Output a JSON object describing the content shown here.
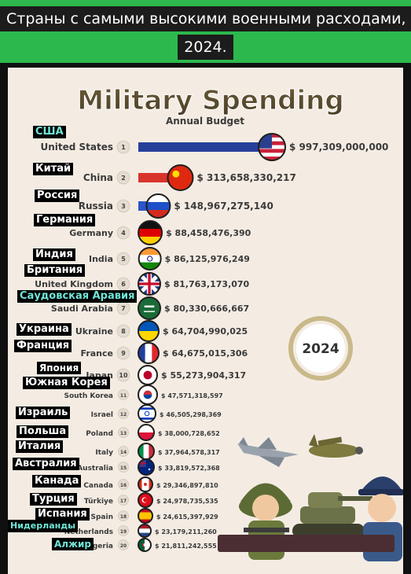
{
  "caption": "Страны с самыми высокими военными расходами, 2024.",
  "chart_data": {
    "type": "bar",
    "title": "Military Spending",
    "subtitle": "Annual Budget",
    "badge": "2024",
    "currency": "$",
    "colors": {
      "title": "#574a2d",
      "text": "#3a3a3a",
      "rank_circle": "#e4ddd1",
      "badge_ring": "#c9b98a",
      "ru_label_cyan": "#6fe6d8",
      "header": "#2db84d"
    },
    "countries": [
      {
        "rank": 1,
        "name": "United States",
        "ru": "США",
        "value": 997309000000,
        "label": "$ 997,309,000,000",
        "bar_color": "#26409a",
        "flag": "us-flag-icon",
        "ru_color": "cyan"
      },
      {
        "rank": 2,
        "name": "China",
        "ru": "Китай",
        "value": 313658330217,
        "label": "$ 313,658,330,217",
        "bar_color": "#d9342b",
        "flag": "cn-flag-icon",
        "ru_color": "white"
      },
      {
        "rank": 3,
        "name": "Russia",
        "ru": "Россия",
        "value": 148967275140,
        "label": "$ 148,967,275,140",
        "bar_color": "#2b55c8",
        "flag": "ru-flag-icon",
        "ru_color": "white"
      },
      {
        "rank": 4,
        "name": "Germany",
        "ru": "Германия",
        "value": 88458476390,
        "label": "$ 88,458,476,390",
        "bar_color": "#111111",
        "flag": "de-flag-icon",
        "ru_color": "white"
      },
      {
        "rank": 5,
        "name": "India",
        "ru": "Индия",
        "value": 86125976249,
        "label": "$ 86,125,976,249",
        "bar_color": "#e58a2c",
        "flag": "in-flag-icon",
        "ru_color": "white"
      },
      {
        "rank": 6,
        "name": "United Kingdom",
        "ru": "Британия",
        "value": 81763173070,
        "label": "$ 81,763,173,070",
        "bar_color": "#1f3a8a",
        "flag": "gb-flag-icon",
        "ru_color": "white"
      },
      {
        "rank": 7,
        "name": "Saudi Arabia",
        "ru": "Саудовская Аравия",
        "value": 80330666667,
        "label": "$ 80,330,666,667",
        "bar_color": "#1d7a3a",
        "flag": "sa-flag-icon",
        "ru_color": "cyan"
      },
      {
        "rank": 8,
        "name": "Ukraine",
        "ru": "Украина",
        "value": 64704990025,
        "label": "$ 64,704,990,025",
        "bar_color": "#2d5fbf",
        "flag": "ua-flag-icon",
        "ru_color": "white"
      },
      {
        "rank": 9,
        "name": "France",
        "ru": "Франция",
        "value": 64675015306,
        "label": "$ 64,675,015,306",
        "bar_color": "#1f3f9a",
        "flag": "fr-flag-icon",
        "ru_color": "white"
      },
      {
        "rank": 10,
        "name": "Japan",
        "ru": "Япония",
        "value": 55273904317,
        "label": "$ 55,273,904,317",
        "bar_color": "#c0182d",
        "flag": "jp-flag-icon",
        "ru_color": "white"
      },
      {
        "rank": 11,
        "name": "South Korea",
        "ru": "Южная Корея",
        "value": 47571318597,
        "label": "$ 47,571,318,597",
        "bar_color": "#1c4aa0",
        "flag": "kr-flag-icon",
        "ru_color": "white"
      },
      {
        "rank": 12,
        "name": "Israel",
        "ru": "Израиль",
        "value": 46505298369,
        "label": "$ 46,505,298,369",
        "bar_color": "#2a58b8",
        "flag": "il-flag-icon",
        "ru_color": "white"
      },
      {
        "rank": 13,
        "name": "Poland",
        "ru": "Польша",
        "value": 38000728652,
        "label": "$ 38,000,728,652",
        "bar_color": "#d6263d",
        "flag": "pl-flag-icon",
        "ru_color": "white"
      },
      {
        "rank": 14,
        "name": "Italy",
        "ru": "Италия",
        "value": 37964578317,
        "label": "$ 37,964,578,317",
        "bar_color": "#1d8a44",
        "flag": "it-flag-icon",
        "ru_color": "white"
      },
      {
        "rank": 15,
        "name": "Australia",
        "ru": "Австралия",
        "value": 33819572368,
        "label": "$ 33,819,572,368",
        "bar_color": "#1a2f7a",
        "flag": "au-flag-icon",
        "ru_color": "white"
      },
      {
        "rank": 16,
        "name": "Canada",
        "ru": "Канада",
        "value": 29346897810,
        "label": "$ 29,346,897,810",
        "bar_color": "#d3202e",
        "flag": "ca-flag-icon",
        "ru_color": "white"
      },
      {
        "rank": 17,
        "name": "Türkiye",
        "ru": "Турция",
        "value": 24978735535,
        "label": "$ 24,978,735,535",
        "bar_color": "#d4202a",
        "flag": "tr-flag-icon",
        "ru_color": "white"
      },
      {
        "rank": 18,
        "name": "Spain",
        "ru": "Испания",
        "value": 24615397929,
        "label": "$ 24,615,397,929",
        "bar_color": "#d5232a",
        "flag": "es-flag-icon",
        "ru_color": "white"
      },
      {
        "rank": 19,
        "name": "Netherlands",
        "ru": "Нидерланды",
        "value": 23179211260,
        "label": "$ 23,179,211,260",
        "bar_color": "#2e4fa5",
        "flag": "nl-flag-icon",
        "ru_color": "cyan"
      },
      {
        "rank": 20,
        "name": "Algeria",
        "ru": "Алжир",
        "value": 21811242555,
        "label": "$ 21,811,242,555",
        "bar_color": "#1b8a45",
        "flag": "dz-flag-icon",
        "ru_color": "cyan"
      }
    ]
  }
}
